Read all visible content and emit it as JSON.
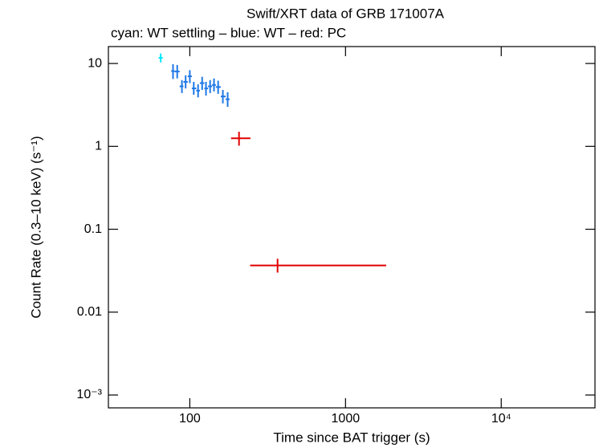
{
  "chart_data": {
    "type": "errorbar-scatter",
    "title": "Swift/XRT data of GRB 171007A",
    "subtitle": "cyan: WT settling – blue: WT – red: PC",
    "x_label": "Time since BAT trigger (s)",
    "y_label": "Count Rate (0.3–10 keV) (s⁻¹)",
    "log_x": true,
    "log_y": true,
    "xlim": [
      30,
      40000
    ],
    "ylim": [
      0.0007,
      16
    ],
    "xticks": [
      100,
      1000,
      {
        "value": 10000,
        "label": "10⁴"
      }
    ],
    "yticks": [
      {
        "value": 0.001,
        "label": "10⁻³"
      },
      0.01,
      0.1,
      1,
      10
    ],
    "series": [
      {
        "color": "#00e8ff",
        "x": [
          65
        ],
        "x_lo": [
          63
        ],
        "x_hi": [
          67
        ],
        "y": [
          11.7
        ],
        "y_lo": [
          10.3
        ],
        "y_hi": [
          13.2
        ]
      },
      {
        "color": "#1e78e6",
        "x": [
          78,
          83,
          89,
          94,
          100,
          106,
          113,
          120,
          127,
          135,
          143,
          152,
          163,
          175
        ],
        "x_lo": [
          76,
          80,
          86,
          91,
          97,
          103,
          110,
          116,
          124,
          131,
          139,
          147,
          158,
          170
        ],
        "x_hi": [
          80,
          86,
          91,
          97,
          103,
          110,
          116,
          124,
          131,
          139,
          147,
          158,
          170,
          180
        ],
        "y": [
          8.1,
          8.0,
          5.3,
          6.0,
          7.0,
          5.0,
          4.7,
          5.8,
          5.0,
          5.3,
          5.5,
          5.2,
          4.0,
          3.7
        ],
        "y_lo": [
          6.5,
          6.6,
          4.4,
          5.0,
          5.8,
          4.2,
          3.9,
          4.8,
          4.1,
          4.4,
          4.6,
          4.3,
          3.3,
          3.0
        ],
        "y_hi": [
          9.8,
          9.6,
          6.3,
          7.2,
          8.3,
          6.0,
          5.6,
          6.9,
          6.0,
          6.3,
          6.6,
          6.2,
          4.8,
          4.5
        ]
      },
      {
        "color": "#e00000",
        "x": [
          207,
          366
        ],
        "x_lo": [
          184,
          244
        ],
        "x_hi": [
          245,
          1825
        ],
        "y": [
          1.25,
          0.0366
        ],
        "y_lo": [
          1.02,
          0.03
        ],
        "y_hi": [
          1.5,
          0.044
        ]
      }
    ]
  }
}
